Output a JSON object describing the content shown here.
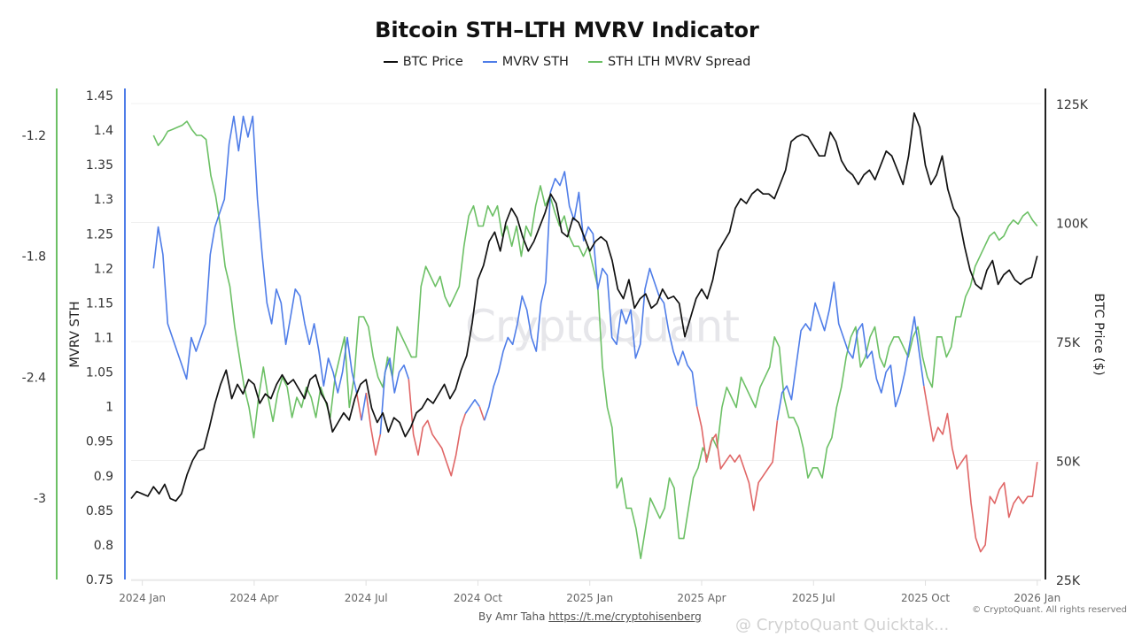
{
  "chart_data": {
    "type": "line",
    "title": "Bitcoin STH–LTH MVRV Indicator",
    "legend": [
      {
        "name": "BTC Price",
        "color": "#111111"
      },
      {
        "name": "MVRV STH",
        "color": "#4f7de8"
      },
      {
        "name": "STH LTH MVRV Spread",
        "color": "#6cc065"
      }
    ],
    "legend_position": "top-center",
    "grid": true,
    "mvrv_below_one_color": "#e06666",
    "xlabel": "",
    "x_ticks": [
      "2024 Jan",
      "2024 Apr",
      "2024 Jul",
      "2024 Oct",
      "2025 Jan",
      "2025 Apr",
      "2025 Jul",
      "2025 Oct",
      "2026 Jan"
    ],
    "axes": {
      "spread": {
        "label": "",
        "ticks": [
          "-1.2",
          "-1.8",
          "-2.4",
          "-3"
        ],
        "range": [
          -3.4,
          -1.0
        ]
      },
      "mvrv": {
        "label": "MVRV STH",
        "ticks": [
          "1.45",
          "1.4",
          "1.35",
          "1.3",
          "1.25",
          "1.2",
          "1.15",
          "1.1",
          "1.05",
          "1",
          "0.95",
          "0.9",
          "0.85",
          "0.8",
          "0.75"
        ],
        "range": [
          0.75,
          1.45
        ]
      },
      "price": {
        "label": "BTC Price ($)",
        "ticks": [
          "125K",
          "100K",
          "75K",
          "50K",
          "25K"
        ],
        "range": [
          25000,
          125000
        ]
      }
    },
    "x_range_months": [
      -0.3,
      24.1
    ],
    "series": [
      {
        "name": "BTC Price",
        "x_start_month": -0.3,
        "step_months": 0.25,
        "values": [
          42000,
          43500,
          43000,
          42500,
          44500,
          43000,
          45000,
          42000,
          41500,
          43000,
          47000,
          50000,
          52000,
          52500,
          57000,
          62000,
          66000,
          69000,
          63000,
          66000,
          64000,
          67000,
          66000,
          62000,
          64000,
          63000,
          66000,
          68000,
          66000,
          67000,
          65000,
          63000,
          67000,
          68000,
          64000,
          62000,
          56000,
          58000,
          60000,
          58500,
          63000,
          66000,
          67000,
          61000,
          58000,
          60000,
          56000,
          59000,
          58000,
          55000,
          57000,
          60000,
          61000,
          63000,
          62000,
          64000,
          66000,
          63000,
          65000,
          69000,
          72000,
          79000,
          88000,
          91000,
          96000,
          98000,
          94000,
          100000,
          103000,
          101000,
          97000,
          94000,
          96000,
          99000,
          102000,
          106000,
          104000,
          98000,
          97000,
          101000,
          100000,
          97000,
          94000,
          96000,
          97000,
          96000,
          92000,
          86000,
          84000,
          88000,
          82000,
          84000,
          85000,
          82000,
          83000,
          86000,
          84000,
          84500,
          83000,
          76000,
          80000,
          84000,
          86000,
          84000,
          88000,
          94000,
          96000,
          98000,
          103000,
          105000,
          104000,
          106000,
          107000,
          106000,
          106000,
          105000,
          108000,
          111000,
          117000,
          118000,
          118500,
          118000,
          116000,
          114000,
          114000,
          119000,
          117000,
          113000,
          111000,
          110000,
          108000,
          110000,
          111000,
          109000,
          112000,
          115000,
          114000,
          111000,
          108000,
          114000,
          123000,
          120000,
          112000,
          108000,
          110000,
          114000,
          107000,
          103000,
          101000,
          95000,
          90000,
          87000,
          86000,
          90000,
          92000,
          87000,
          89000,
          90000,
          88000,
          87000,
          88000,
          88500,
          93000
        ]
      },
      {
        "name": "MVRV STH",
        "x_start_month": 0.3,
        "step_months": 0.25,
        "values": [
          1.2,
          1.26,
          1.22,
          1.12,
          1.1,
          1.08,
          1.06,
          1.04,
          1.1,
          1.08,
          1.1,
          1.12,
          1.22,
          1.26,
          1.28,
          1.3,
          1.38,
          1.42,
          1.37,
          1.42,
          1.39,
          1.42,
          1.3,
          1.22,
          1.15,
          1.12,
          1.17,
          1.15,
          1.09,
          1.13,
          1.17,
          1.16,
          1.12,
          1.09,
          1.12,
          1.08,
          1.03,
          1.07,
          1.05,
          1.02,
          1.05,
          1.1,
          1.05,
          1.02,
          0.98,
          1.02,
          0.97,
          0.93,
          0.96,
          1.05,
          1.07,
          1.02,
          1.05,
          1.06,
          1.04,
          0.96,
          0.93,
          0.97,
          0.98,
          0.96,
          0.95,
          0.94,
          0.92,
          0.9,
          0.93,
          0.97,
          0.99,
          1.0,
          1.01,
          1.0,
          0.98,
          1.0,
          1.03,
          1.05,
          1.08,
          1.1,
          1.09,
          1.12,
          1.16,
          1.14,
          1.1,
          1.08,
          1.15,
          1.18,
          1.31,
          1.33,
          1.32,
          1.34,
          1.29,
          1.27,
          1.31,
          1.24,
          1.26,
          1.25,
          1.17,
          1.2,
          1.19,
          1.1,
          1.09,
          1.14,
          1.12,
          1.14,
          1.07,
          1.09,
          1.17,
          1.2,
          1.18,
          1.16,
          1.15,
          1.11,
          1.08,
          1.06,
          1.08,
          1.06,
          1.05,
          1.0,
          0.97,
          0.92,
          0.95,
          0.96,
          0.91,
          0.92,
          0.93,
          0.92,
          0.93,
          0.91,
          0.89,
          0.85,
          0.89,
          0.9,
          0.91,
          0.92,
          0.98,
          1.02,
          1.03,
          1.01,
          1.06,
          1.11,
          1.12,
          1.11,
          1.15,
          1.13,
          1.11,
          1.14,
          1.18,
          1.12,
          1.1,
          1.08,
          1.07,
          1.11,
          1.12,
          1.07,
          1.08,
          1.04,
          1.02,
          1.05,
          1.06,
          1.0,
          1.02,
          1.05,
          1.09,
          1.13,
          1.08,
          1.03,
          0.99,
          0.95,
          0.97,
          0.96,
          0.99,
          0.94,
          0.91,
          0.92,
          0.93,
          0.86,
          0.81,
          0.79,
          0.8,
          0.87,
          0.86,
          0.88,
          0.89,
          0.84,
          0.86,
          0.87,
          0.86,
          0.87,
          0.87,
          0.92
        ]
      },
      {
        "name": "STH LTH MVRV Spread",
        "x_start_month": 0.3,
        "step_months": 0.25,
        "values": [
          -1.2,
          -1.25,
          -1.22,
          -1.18,
          -1.17,
          -1.16,
          -1.15,
          -1.13,
          -1.17,
          -1.2,
          -1.2,
          -1.22,
          -1.4,
          -1.5,
          -1.65,
          -1.85,
          -1.95,
          -2.15,
          -2.3,
          -2.45,
          -2.55,
          -2.7,
          -2.5,
          -2.35,
          -2.5,
          -2.62,
          -2.48,
          -2.4,
          -2.45,
          -2.6,
          -2.5,
          -2.55,
          -2.45,
          -2.5,
          -2.6,
          -2.45,
          -2.52,
          -2.6,
          -2.4,
          -2.3,
          -2.2,
          -2.55,
          -2.4,
          -2.1,
          -2.1,
          -2.15,
          -2.3,
          -2.4,
          -2.45,
          -2.3,
          -2.4,
          -2.15,
          -2.2,
          -2.25,
          -2.3,
          -2.3,
          -1.95,
          -1.85,
          -1.9,
          -1.95,
          -1.9,
          -2.0,
          -2.05,
          -2.0,
          -1.95,
          -1.75,
          -1.6,
          -1.55,
          -1.65,
          -1.65,
          -1.55,
          -1.6,
          -1.55,
          -1.7,
          -1.65,
          -1.75,
          -1.65,
          -1.8,
          -1.65,
          -1.7,
          -1.55,
          -1.45,
          -1.55,
          -1.5,
          -1.58,
          -1.65,
          -1.6,
          -1.7,
          -1.75,
          -1.75,
          -1.8,
          -1.75,
          -1.85,
          -1.95,
          -2.35,
          -2.55,
          -2.65,
          -2.95,
          -2.9,
          -3.05,
          -3.05,
          -3.15,
          -3.3,
          -3.15,
          -3.0,
          -3.05,
          -3.1,
          -3.05,
          -2.9,
          -2.95,
          -3.2,
          -3.2,
          -3.05,
          -2.9,
          -2.85,
          -2.75,
          -2.8,
          -2.7,
          -2.75,
          -2.55,
          -2.45,
          -2.5,
          -2.55,
          -2.4,
          -2.45,
          -2.5,
          -2.55,
          -2.45,
          -2.4,
          -2.35,
          -2.2,
          -2.25,
          -2.5,
          -2.6,
          -2.6,
          -2.65,
          -2.75,
          -2.9,
          -2.85,
          -2.85,
          -2.9,
          -2.75,
          -2.7,
          -2.55,
          -2.45,
          -2.3,
          -2.2,
          -2.15,
          -2.35,
          -2.3,
          -2.2,
          -2.15,
          -2.3,
          -2.35,
          -2.25,
          -2.2,
          -2.2,
          -2.25,
          -2.3,
          -2.2,
          -2.15,
          -2.3,
          -2.4,
          -2.45,
          -2.2,
          -2.2,
          -2.3,
          -2.25,
          -2.1,
          -2.1,
          -2.0,
          -1.95,
          -1.85,
          -1.8,
          -1.75,
          -1.7,
          -1.68,
          -1.72,
          -1.7,
          -1.65,
          -1.62,
          -1.64,
          -1.6,
          -1.58,
          -1.62,
          -1.65
        ]
      }
    ]
  },
  "footer": {
    "byline": "By Amr Taha",
    "link": "https://t.me/cryptohisenberg",
    "copyright": "© CryptoQuant. All rights reserved",
    "watermark_center": "CryptoQuant",
    "watermark_bottom": "@ CryptoQuant Quicktak..."
  }
}
